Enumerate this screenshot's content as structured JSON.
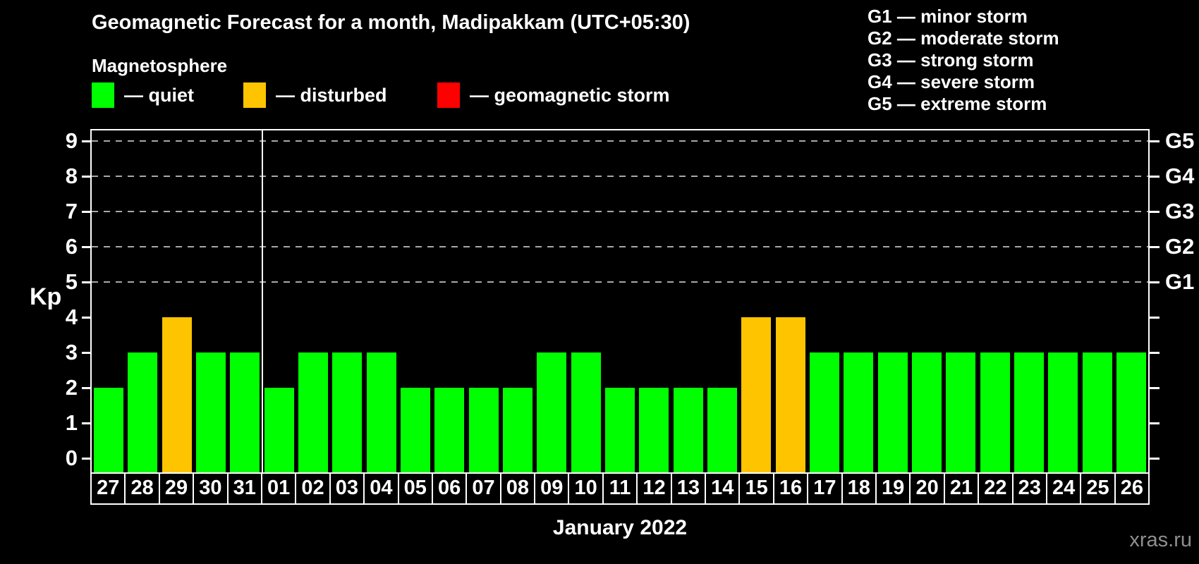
{
  "title": "Geomagnetic Forecast for a month, Madipakkam (UTC+05:30)",
  "subtitle": "Magnetosphere",
  "legend": {
    "items": [
      {
        "status": "quiet",
        "label": "— quiet",
        "color": "#00ff00"
      },
      {
        "status": "disturbed",
        "label": "— disturbed",
        "color": "#ffc400"
      },
      {
        "status": "storm",
        "label": "— geomagnetic storm",
        "color": "#ff0000"
      }
    ]
  },
  "g_scale_legend": [
    "G1 — minor storm",
    "G2 — moderate storm",
    "G3 — strong storm",
    "G4 — severe storm",
    "G5 — extreme storm"
  ],
  "y_axis": {
    "label": "Kp",
    "ticks": [
      0,
      1,
      2,
      3,
      4,
      5,
      6,
      7,
      8,
      9
    ]
  },
  "right_axis": {
    "labels": [
      {
        "text": "G1",
        "kp": 5
      },
      {
        "text": "G2",
        "kp": 6
      },
      {
        "text": "G3",
        "kp": 7
      },
      {
        "text": "G4",
        "kp": 8
      },
      {
        "text": "G5",
        "kp": 9
      }
    ]
  },
  "x_axis_label": "January 2022",
  "watermark": "xras.ru",
  "chart_data": {
    "type": "bar",
    "title": "Geomagnetic Forecast for a month, Madipakkam (UTC+05:30)",
    "xlabel": "January 2022",
    "ylabel": "Kp",
    "ylim": [
      0,
      9
    ],
    "grid": "dashed horizontal gridlines at Kp 5-9 (G1-G5), legend top-right",
    "categories": [
      "27",
      "28",
      "29",
      "30",
      "31",
      "01",
      "02",
      "03",
      "04",
      "05",
      "06",
      "07",
      "08",
      "09",
      "10",
      "11",
      "12",
      "13",
      "14",
      "15",
      "16",
      "17",
      "18",
      "19",
      "20",
      "21",
      "22",
      "23",
      "24",
      "25",
      "26"
    ],
    "values": [
      2,
      3,
      4,
      3,
      3,
      2,
      3,
      3,
      3,
      2,
      2,
      2,
      2,
      3,
      3,
      2,
      2,
      2,
      2,
      4,
      4,
      3,
      3,
      3,
      3,
      3,
      3,
      3,
      3,
      3,
      3
    ],
    "statuses": [
      "quiet",
      "quiet",
      "disturbed",
      "quiet",
      "quiet",
      "quiet",
      "quiet",
      "quiet",
      "quiet",
      "quiet",
      "quiet",
      "quiet",
      "quiet",
      "quiet",
      "quiet",
      "quiet",
      "quiet",
      "quiet",
      "quiet",
      "disturbed",
      "disturbed",
      "quiet",
      "quiet",
      "quiet",
      "quiet",
      "quiet",
      "quiet",
      "quiet",
      "quiet",
      "quiet",
      "quiet"
    ],
    "colors": {
      "quiet": "#00ff00",
      "disturbed": "#ffc400",
      "storm": "#ff0000"
    },
    "month_separator_index": 5
  }
}
